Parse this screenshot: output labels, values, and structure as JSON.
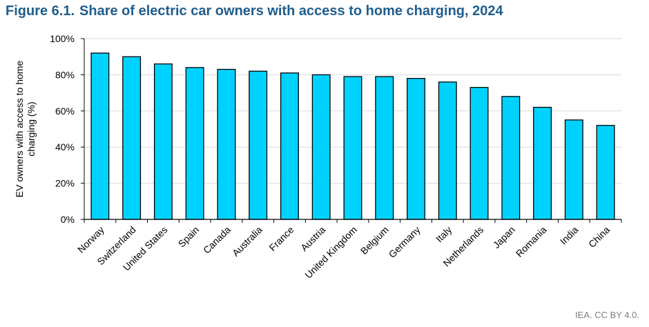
{
  "figure": {
    "number": "Figure 6.1.",
    "title": "Share of electric car owners with access to home charging, 2024"
  },
  "credit": "IEA. CC BY 4.0.",
  "chart_data": {
    "type": "bar",
    "title": "Share of electric car owners with access to home charging, 2024",
    "xlabel": "",
    "ylabel": "EV owners with access to home charging (%)",
    "ylabel_lines": [
      "EV owners with access to home",
      "charging (%)"
    ],
    "categories": [
      "Norway",
      "Switzerland",
      "United States",
      "Spain",
      "Canada",
      "Australia",
      "France",
      "Austria",
      "United Kingdom",
      "Belgium",
      "Germany",
      "Italy",
      "Netherlands",
      "Japan",
      "Romania",
      "India",
      "China"
    ],
    "values": [
      92,
      90,
      86,
      84,
      83,
      82,
      81,
      80,
      79,
      79,
      78,
      76,
      73,
      68,
      62,
      55,
      52
    ],
    "ylim": [
      0,
      100
    ],
    "yticks": [
      0,
      20,
      40,
      60,
      80,
      100
    ],
    "ytick_labels": [
      "0%",
      "20%",
      "40%",
      "60%",
      "80%",
      "100%"
    ],
    "grid": true,
    "legend": "none",
    "colors": {
      "bar_fill": "#00d2ff",
      "bar_stroke": "#000000",
      "grid": "#d9d9d9",
      "axis": "#000000",
      "title": "#1f5d8c"
    }
  }
}
